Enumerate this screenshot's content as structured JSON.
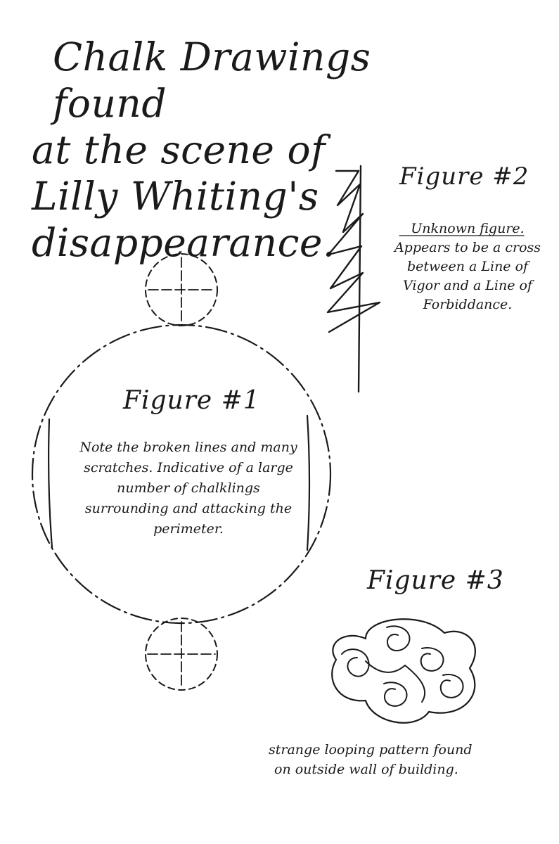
{
  "title": {
    "lines": [
      "Chalk Drawings found",
      "at the scene of",
      "Lilly Whiting's",
      "disappearance."
    ]
  },
  "figure1": {
    "heading": "Figure #1",
    "note": "Note the broken lines and many scratches. Indicative of a large number of chalklings surrounding and attacking the perimeter."
  },
  "figure2": {
    "heading": "Figure #2",
    "caption_label": "Unknown figure.",
    "caption_body": "Appears to be a cross between a Line of Vigor and a Line of Forbiddance."
  },
  "figure3": {
    "heading": "Figure #3",
    "caption_lines": [
      "strange looping pattern found",
      "on outside wall of building."
    ]
  },
  "colors": {
    "paper": "#ffffff",
    "ink": "#1a1a1a"
  }
}
